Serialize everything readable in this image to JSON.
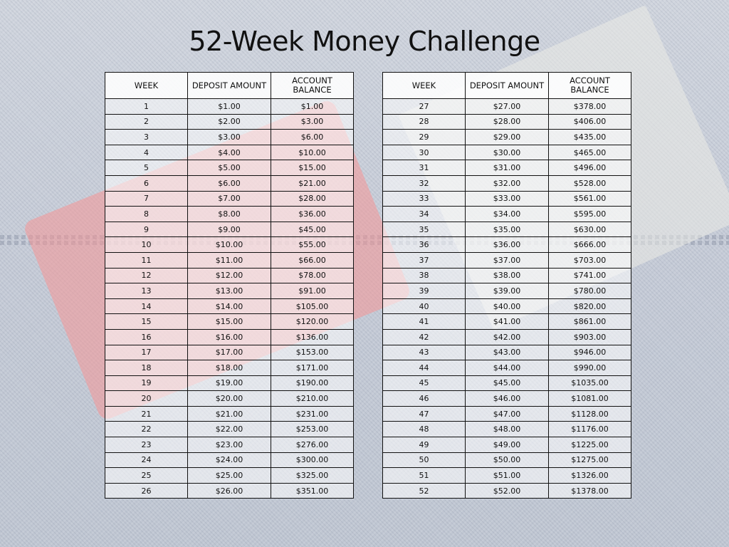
{
  "title": "52-Week Money Challenge",
  "headers": {
    "week": "WEEK",
    "deposit": "DEPOSIT AMOUNT",
    "balance_line1": "ACCOUNT",
    "balance_line2": "BALANCE"
  },
  "left_rows": [
    {
      "week": "1",
      "deposit": "$1.00",
      "balance": "$1.00"
    },
    {
      "week": "2",
      "deposit": "$2.00",
      "balance": "$3.00"
    },
    {
      "week": "3",
      "deposit": "$3.00",
      "balance": "$6.00"
    },
    {
      "week": "4",
      "deposit": "$4.00",
      "balance": "$10.00"
    },
    {
      "week": "5",
      "deposit": "$5.00",
      "balance": "$15.00"
    },
    {
      "week": "6",
      "deposit": "$6.00",
      "balance": "$21.00"
    },
    {
      "week": "7",
      "deposit": "$7.00",
      "balance": "$28.00"
    },
    {
      "week": "8",
      "deposit": "$8.00",
      "balance": "$36.00"
    },
    {
      "week": "9",
      "deposit": "$9.00",
      "balance": "$45.00"
    },
    {
      "week": "10",
      "deposit": "$10.00",
      "balance": "$55.00"
    },
    {
      "week": "11",
      "deposit": "$11.00",
      "balance": "$66.00"
    },
    {
      "week": "12",
      "deposit": "$12.00",
      "balance": "$78.00"
    },
    {
      "week": "13",
      "deposit": "$13.00",
      "balance": "$91.00"
    },
    {
      "week": "14",
      "deposit": "$14.00",
      "balance": "$105.00"
    },
    {
      "week": "15",
      "deposit": "$15.00",
      "balance": "$120.00"
    },
    {
      "week": "16",
      "deposit": "$16.00",
      "balance": "$136.00"
    },
    {
      "week": "17",
      "deposit": "$17.00",
      "balance": "$153.00"
    },
    {
      "week": "18",
      "deposit": "$18.00",
      "balance": "$171.00"
    },
    {
      "week": "19",
      "deposit": "$19.00",
      "balance": "$190.00"
    },
    {
      "week": "20",
      "deposit": "$20.00",
      "balance": "$210.00"
    },
    {
      "week": "21",
      "deposit": "$21.00",
      "balance": "$231.00"
    },
    {
      "week": "22",
      "deposit": "$22.00",
      "balance": "$253.00"
    },
    {
      "week": "23",
      "deposit": "$23.00",
      "balance": "$276.00"
    },
    {
      "week": "24",
      "deposit": "$24.00",
      "balance": "$300.00"
    },
    {
      "week": "25",
      "deposit": "$25.00",
      "balance": "$325.00"
    },
    {
      "week": "26",
      "deposit": "$26.00",
      "balance": "$351.00"
    }
  ],
  "right_rows": [
    {
      "week": "27",
      "deposit": "$27.00",
      "balance": "$378.00"
    },
    {
      "week": "28",
      "deposit": "$28.00",
      "balance": "$406.00"
    },
    {
      "week": "29",
      "deposit": "$29.00",
      "balance": "$435.00"
    },
    {
      "week": "30",
      "deposit": "$30.00",
      "balance": "$465.00"
    },
    {
      "week": "31",
      "deposit": "$31.00",
      "balance": "$496.00"
    },
    {
      "week": "32",
      "deposit": "$32.00",
      "balance": "$528.00"
    },
    {
      "week": "33",
      "deposit": "$33.00",
      "balance": "$561.00"
    },
    {
      "week": "34",
      "deposit": "$34.00",
      "balance": "$595.00"
    },
    {
      "week": "35",
      "deposit": "$35.00",
      "balance": "$630.00"
    },
    {
      "week": "36",
      "deposit": "$36.00",
      "balance": "$666.00"
    },
    {
      "week": "37",
      "deposit": "$37.00",
      "balance": "$703.00"
    },
    {
      "week": "38",
      "deposit": "$38.00",
      "balance": "$741.00"
    },
    {
      "week": "39",
      "deposit": "$39.00",
      "balance": "$780.00"
    },
    {
      "week": "40",
      "deposit": "$40.00",
      "balance": "$820.00"
    },
    {
      "week": "41",
      "deposit": "$41.00",
      "balance": "$861.00"
    },
    {
      "week": "42",
      "deposit": "$42.00",
      "balance": "$903.00"
    },
    {
      "week": "43",
      "deposit": "$43.00",
      "balance": "$946.00"
    },
    {
      "week": "44",
      "deposit": "$44.00",
      "balance": "$990.00"
    },
    {
      "week": "45",
      "deposit": "$45.00",
      "balance": "$1035.00"
    },
    {
      "week": "46",
      "deposit": "$46.00",
      "balance": "$1081.00"
    },
    {
      "week": "47",
      "deposit": "$47.00",
      "balance": "$1128.00"
    },
    {
      "week": "48",
      "deposit": "$48.00",
      "balance": "$1176.00"
    },
    {
      "week": "49",
      "deposit": "$49.00",
      "balance": "$1225.00"
    },
    {
      "week": "50",
      "deposit": "$50.00",
      "balance": "$1275.00"
    },
    {
      "week": "51",
      "deposit": "$51.00",
      "balance": "$1326.00"
    },
    {
      "week": "52",
      "deposit": "$52.00",
      "balance": "$1378.00"
    }
  ]
}
